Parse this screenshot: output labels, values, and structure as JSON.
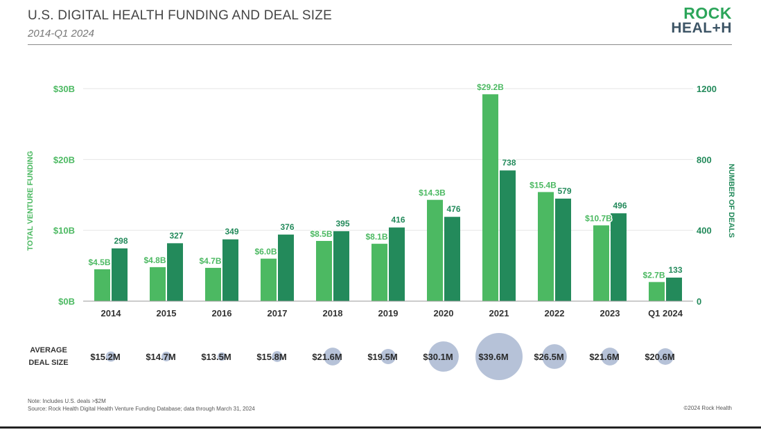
{
  "header": {
    "title": "U.S. DIGITAL HEALTH FUNDING AND DEAL SIZE",
    "subtitle": "2014-Q1 2024",
    "logo_line1": "ROCK",
    "logo_line2": "HEAL+H"
  },
  "chart_data": {
    "type": "bar",
    "categories": [
      "2014",
      "2015",
      "2016",
      "2017",
      "2018",
      "2019",
      "2020",
      "2021",
      "2022",
      "2023",
      "Q1 2024"
    ],
    "series": [
      {
        "axis": "left",
        "color": "#4cb962",
        "values": [
          4.5,
          4.8,
          4.7,
          6.0,
          8.5,
          8.1,
          14.3,
          29.2,
          15.4,
          10.7,
          2.7
        ],
        "labels": [
          "$4.5B",
          "$4.8B",
          "$4.7B",
          "$6.0B",
          "$8.5B",
          "$8.1B",
          "$14.3B",
          "$29.2B",
          "$15.4B",
          "$10.7B",
          "$2.7B"
        ]
      },
      {
        "axis": "right",
        "color": "#238a5b",
        "values": [
          298,
          327,
          349,
          376,
          395,
          416,
          476,
          738,
          579,
          496,
          133
        ],
        "labels": [
          "298",
          "327",
          "349",
          "376",
          "395",
          "416",
          "476",
          "738",
          "579",
          "496",
          "133"
        ]
      }
    ],
    "left_axis": {
      "label": "TOTAL VENTURE FUNDING",
      "ylim": [
        0,
        30
      ],
      "ticks": [
        0,
        10,
        20,
        30
      ],
      "tick_labels": [
        "$0B",
        "$10B",
        "$20B",
        "$30B"
      ],
      "color": "#4cb962"
    },
    "right_axis": {
      "label": "NUMBER OF DEALS",
      "ylim": [
        0,
        1200
      ],
      "ticks": [
        0,
        400,
        800,
        1200
      ],
      "tick_labels": [
        "0",
        "400",
        "800",
        "1200"
      ],
      "color": "#238a5b"
    },
    "grid": true,
    "average_deal_size": {
      "label_line1": "AVERAGE",
      "label_line2": "DEAL SIZE",
      "values": [
        15.2,
        14.7,
        13.5,
        15.8,
        21.6,
        19.5,
        30.1,
        39.6,
        26.5,
        21.6,
        20.6
      ],
      "labels": [
        "$15.2M",
        "$14.7M",
        "$13.5M",
        "$15.8M",
        "$21.6M",
        "$19.5M",
        "$30.1M",
        "$39.6M",
        "$26.5M",
        "$21.6M",
        "$20.6M"
      ],
      "bubble_color": "#b6c2d8"
    }
  },
  "footer": {
    "note": "Note: Includes U.S. deals >$2M",
    "source": "Source: Rock Health Digital Health Venture Funding Database; data through March 31, 2024",
    "copyright": "©2024 Rock Health"
  }
}
